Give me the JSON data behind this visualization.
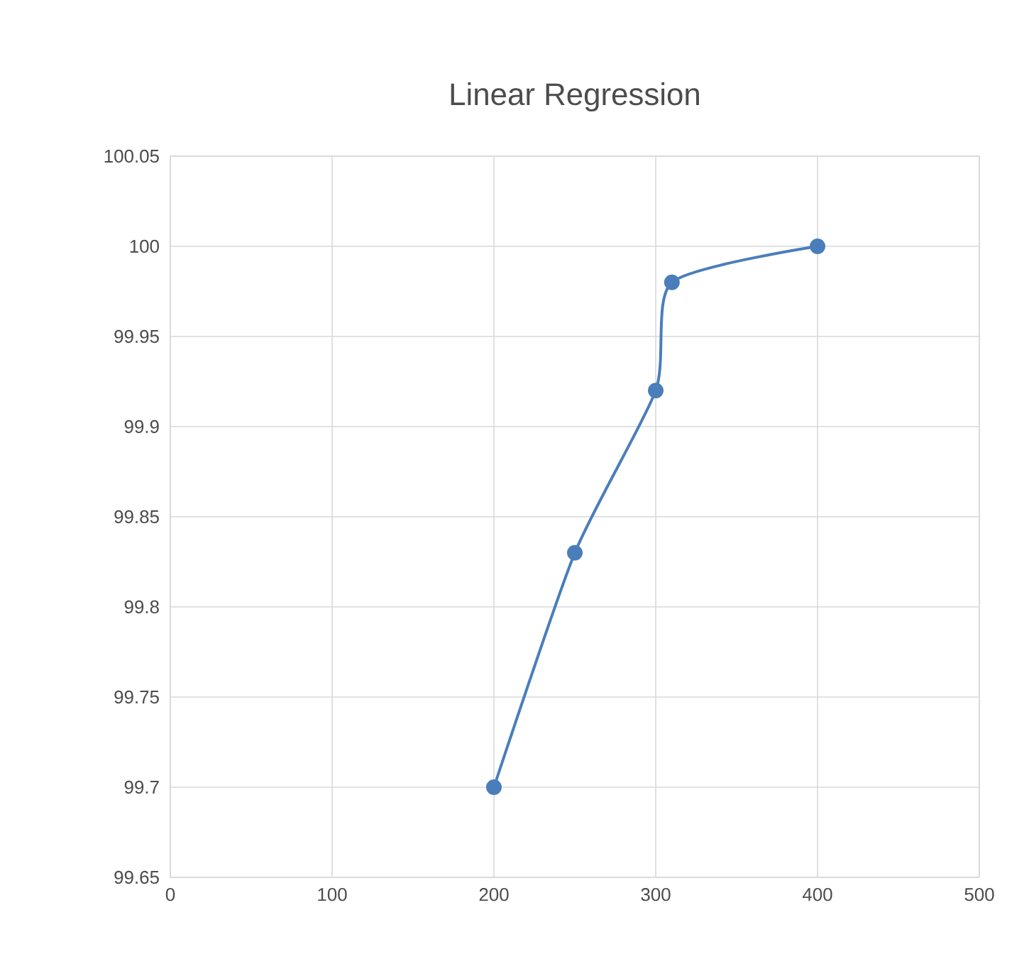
{
  "chart_data": {
    "type": "line",
    "title": "Linear Regression",
    "x": [
      200,
      250,
      300,
      310,
      400
    ],
    "series": [
      {
        "color": "#4a7ebb",
        "values": [
          99.7,
          99.83,
          99.92,
          99.98,
          100
        ]
      }
    ],
    "xlim": [
      0,
      500
    ],
    "xticks": [
      0,
      100,
      200,
      300,
      400,
      500
    ],
    "ylim": [
      99.65,
      100.05
    ],
    "yticks": [
      99.65,
      99.7,
      99.75,
      99.8,
      99.85,
      99.9,
      99.95,
      100,
      100.05
    ],
    "grid": true,
    "marker": "circle",
    "line_style": "solid"
  }
}
